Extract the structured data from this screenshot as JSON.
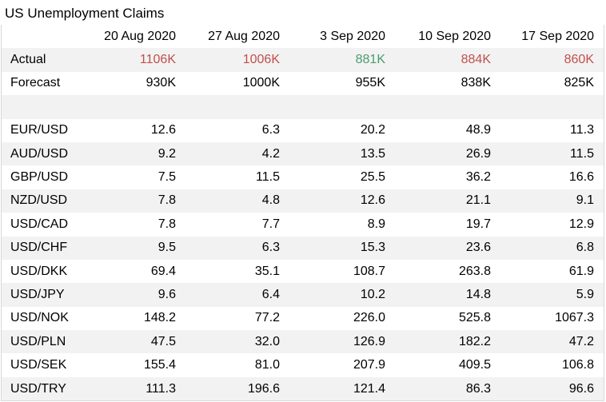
{
  "title": "US Unemployment Claims",
  "chart_data": {
    "type": "table",
    "title": "US Unemployment Claims",
    "columns": [
      "20 Aug 2020",
      "27 Aug 2020",
      "3 Sep 2020",
      "10 Sep 2020",
      "17 Sep 2020"
    ],
    "summary_rows": [
      {
        "label": "Actual",
        "values": [
          "1106K",
          "1006K",
          "881K",
          "884K",
          "860K"
        ],
        "value_colors": [
          "#c0504d",
          "#c0504d",
          "#4a9c6d",
          "#c0504d",
          "#c0504d"
        ]
      },
      {
        "label": "Forecast",
        "values": [
          "930K",
          "1000K",
          "955K",
          "838K",
          "825K"
        ],
        "value_colors": [
          "#000000",
          "#000000",
          "#000000",
          "#000000",
          "#000000"
        ]
      }
    ],
    "pair_rows": [
      {
        "label": "EUR/USD",
        "values": [
          "12.6",
          "6.3",
          "20.2",
          "48.9",
          "11.3"
        ]
      },
      {
        "label": "AUD/USD",
        "values": [
          "9.2",
          "4.2",
          "13.5",
          "26.9",
          "11.5"
        ]
      },
      {
        "label": "GBP/USD",
        "values": [
          "7.5",
          "11.5",
          "25.5",
          "36.2",
          "16.6"
        ]
      },
      {
        "label": "NZD/USD",
        "values": [
          "7.8",
          "4.8",
          "12.6",
          "21.1",
          "9.1"
        ]
      },
      {
        "label": "USD/CAD",
        "values": [
          "7.8",
          "7.7",
          "8.9",
          "19.7",
          "12.9"
        ]
      },
      {
        "label": "USD/CHF",
        "values": [
          "9.5",
          "6.3",
          "15.3",
          "23.6",
          "6.8"
        ]
      },
      {
        "label": "USD/DKK",
        "values": [
          "69.4",
          "35.1",
          "108.7",
          "263.8",
          "61.9"
        ]
      },
      {
        "label": "USD/JPY",
        "values": [
          "9.6",
          "6.4",
          "10.2",
          "14.8",
          "5.9"
        ]
      },
      {
        "label": "USD/NOK",
        "values": [
          "148.2",
          "77.2",
          "226.0",
          "525.8",
          "1067.3"
        ]
      },
      {
        "label": "USD/PLN",
        "values": [
          "47.5",
          "32.0",
          "126.9",
          "182.2",
          "47.2"
        ]
      },
      {
        "label": "USD/SEK",
        "values": [
          "155.4",
          "81.0",
          "207.9",
          "409.5",
          "106.8"
        ]
      },
      {
        "label": "USD/TRY",
        "values": [
          "111.3",
          "196.6",
          "121.4",
          "86.3",
          "96.6"
        ]
      }
    ]
  },
  "style": {
    "shade_color": "#f2f2f2",
    "negative_color": "#c0504d",
    "positive_color": "#4a9c6d"
  }
}
